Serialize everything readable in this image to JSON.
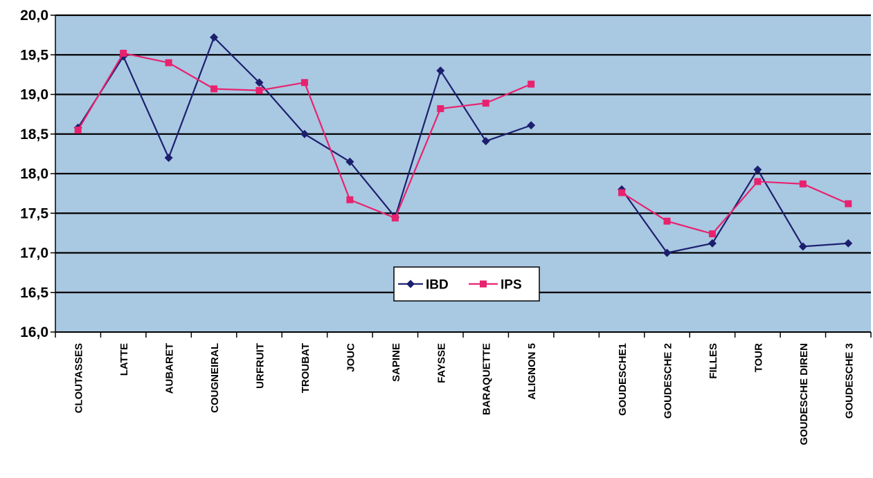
{
  "chart_data": {
    "type": "line",
    "categories": [
      "CLOUTASSES",
      "LATTE",
      "AUBARET",
      "COUGNEIRAL",
      "URFRUIT",
      "TROUBAT",
      "JOUC",
      "SAPINE",
      "FAYSSE",
      "BARAQUETTE",
      "ALIGNON 5",
      "",
      "GOUDESCHE1",
      "GOUDESCHE 2",
      "FILLES",
      "TOUR",
      "GOUDESCHE DIREN",
      "GOUDESCHE 3"
    ],
    "series": [
      {
        "name": "IBD",
        "color": "#1c1f6e",
        "marker": "diamond",
        "values": [
          18.58,
          19.48,
          18.2,
          19.72,
          19.15,
          18.5,
          18.15,
          17.45,
          19.3,
          18.41,
          18.61,
          null,
          17.8,
          17.0,
          17.12,
          18.05,
          17.08,
          17.12
        ]
      },
      {
        "name": "IPS",
        "color": "#e8226e",
        "marker": "square",
        "values": [
          18.55,
          19.52,
          19.4,
          19.07,
          19.05,
          19.15,
          17.67,
          17.44,
          18.82,
          18.89,
          19.13,
          null,
          17.76,
          17.4,
          17.24,
          17.9,
          17.87,
          17.62
        ]
      }
    ],
    "yticks": [
      "16,0",
      "16,5",
      "17,0",
      "17,5",
      "18,0",
      "18,5",
      "19,0",
      "19,5",
      "20,0"
    ],
    "ylim": [
      16.0,
      20.0
    ],
    "grid": true,
    "legend_position": "center",
    "title": "",
    "xlabel": "",
    "ylabel": "",
    "colors": {
      "plot_background": "#a9c8e2",
      "grid": "#000000"
    }
  }
}
